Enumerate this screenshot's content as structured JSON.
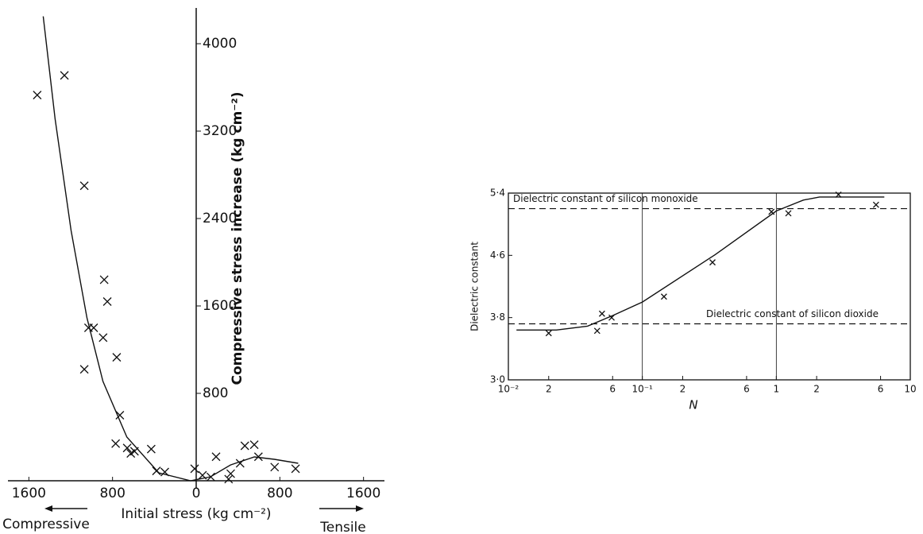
{
  "chart_data": [
    {
      "type": "scatter",
      "xlabel": "Initial stress (kg cm⁻²)",
      "ylabel": "Compressive stress increase (kg cm⁻²)",
      "direction_labels": [
        "Compressive",
        "Tensile"
      ],
      "xlim": [
        -1800,
        1800
      ],
      "ylim": [
        0,
        4400
      ],
      "xticks": [
        {
          "value": -1600,
          "label": "1600"
        },
        {
          "value": -800,
          "label": "800"
        },
        0,
        800,
        1600
      ],
      "yticks": [
        800,
        1600,
        2400,
        3200,
        4000
      ],
      "color": "#111111",
      "series": [
        {
          "style": "markers",
          "x": [
            -1520,
            -1260,
            -1070,
            -880,
            -850,
            -1030,
            -980,
            -890,
            -760,
            -1070,
            -730,
            -770,
            -660,
            -625,
            -590,
            -430,
            -380,
            -300,
            -15,
            60,
            140,
            190,
            330,
            310,
            420,
            465,
            555,
            595,
            750,
            950
          ],
          "values": [
            3530,
            3710,
            2700,
            1840,
            1640,
            1400,
            1400,
            1310,
            1130,
            1020,
            600,
            340,
            300,
            250,
            270,
            290,
            90,
            80,
            110,
            50,
            35,
            220,
            65,
            15,
            160,
            320,
            330,
            220,
            125,
            110
          ]
        },
        {
          "style": "line",
          "x": [
            -1463,
            -1349,
            -1196,
            -1044,
            -892,
            -663,
            -358,
            -53,
            137,
            328,
            556,
            747,
            975
          ],
          "values": [
            4250,
            3310,
            2290,
            1490,
            910,
            400,
            73,
            0,
            36,
            145,
            218,
            196,
            160
          ]
        }
      ]
    },
    {
      "type": "scatter",
      "xlabel": "N",
      "ylabel": "Dielectric constant",
      "xscale": "log",
      "xlim": [
        0.01,
        10
      ],
      "ylim": [
        3.0,
        5.4
      ],
      "xticks": [
        {
          "value": 0.01,
          "label": "10⁻²"
        },
        {
          "value": 0.02,
          "label": "2"
        },
        {
          "value": 0.06,
          "label": "6"
        },
        {
          "value": 0.1,
          "label": "10⁻¹"
        },
        {
          "value": 0.2,
          "label": "2"
        },
        {
          "value": 0.6,
          "label": "6"
        },
        1,
        2,
        6,
        10
      ],
      "yticks": [
        {
          "value": 3.0,
          "label": "3·0"
        },
        {
          "value": 3.8,
          "label": "3·8"
        },
        {
          "value": 4.6,
          "label": "4·6"
        },
        {
          "value": 5.4,
          "label": "5·4"
        }
      ],
      "vlines": [
        0.1,
        1
      ],
      "hlines": [
        {
          "value": 5.2,
          "label": "Dielectric constant of silicon monoxide"
        },
        {
          "value": 3.72,
          "label": "Dielectric constant of silicon dioxide"
        }
      ],
      "color": "#111111",
      "series": [
        {
          "style": "markers",
          "x": [
            0.02,
            0.046,
            0.05,
            0.059,
            0.145,
            0.334,
            0.92,
            1.23,
            2.91,
            5.55
          ],
          "values": [
            3.6,
            3.63,
            3.85,
            3.8,
            4.07,
            4.51,
            5.16,
            5.14,
            5.38,
            5.25
          ]
        },
        {
          "style": "line",
          "x": [
            0.0115,
            0.0228,
            0.039,
            0.059,
            0.1,
            0.35,
            1,
            1.59,
            2.1,
            6.4
          ],
          "values": [
            3.64,
            3.64,
            3.69,
            3.82,
            4.0,
            4.61,
            5.17,
            5.31,
            5.35,
            5.35
          ]
        }
      ]
    }
  ]
}
